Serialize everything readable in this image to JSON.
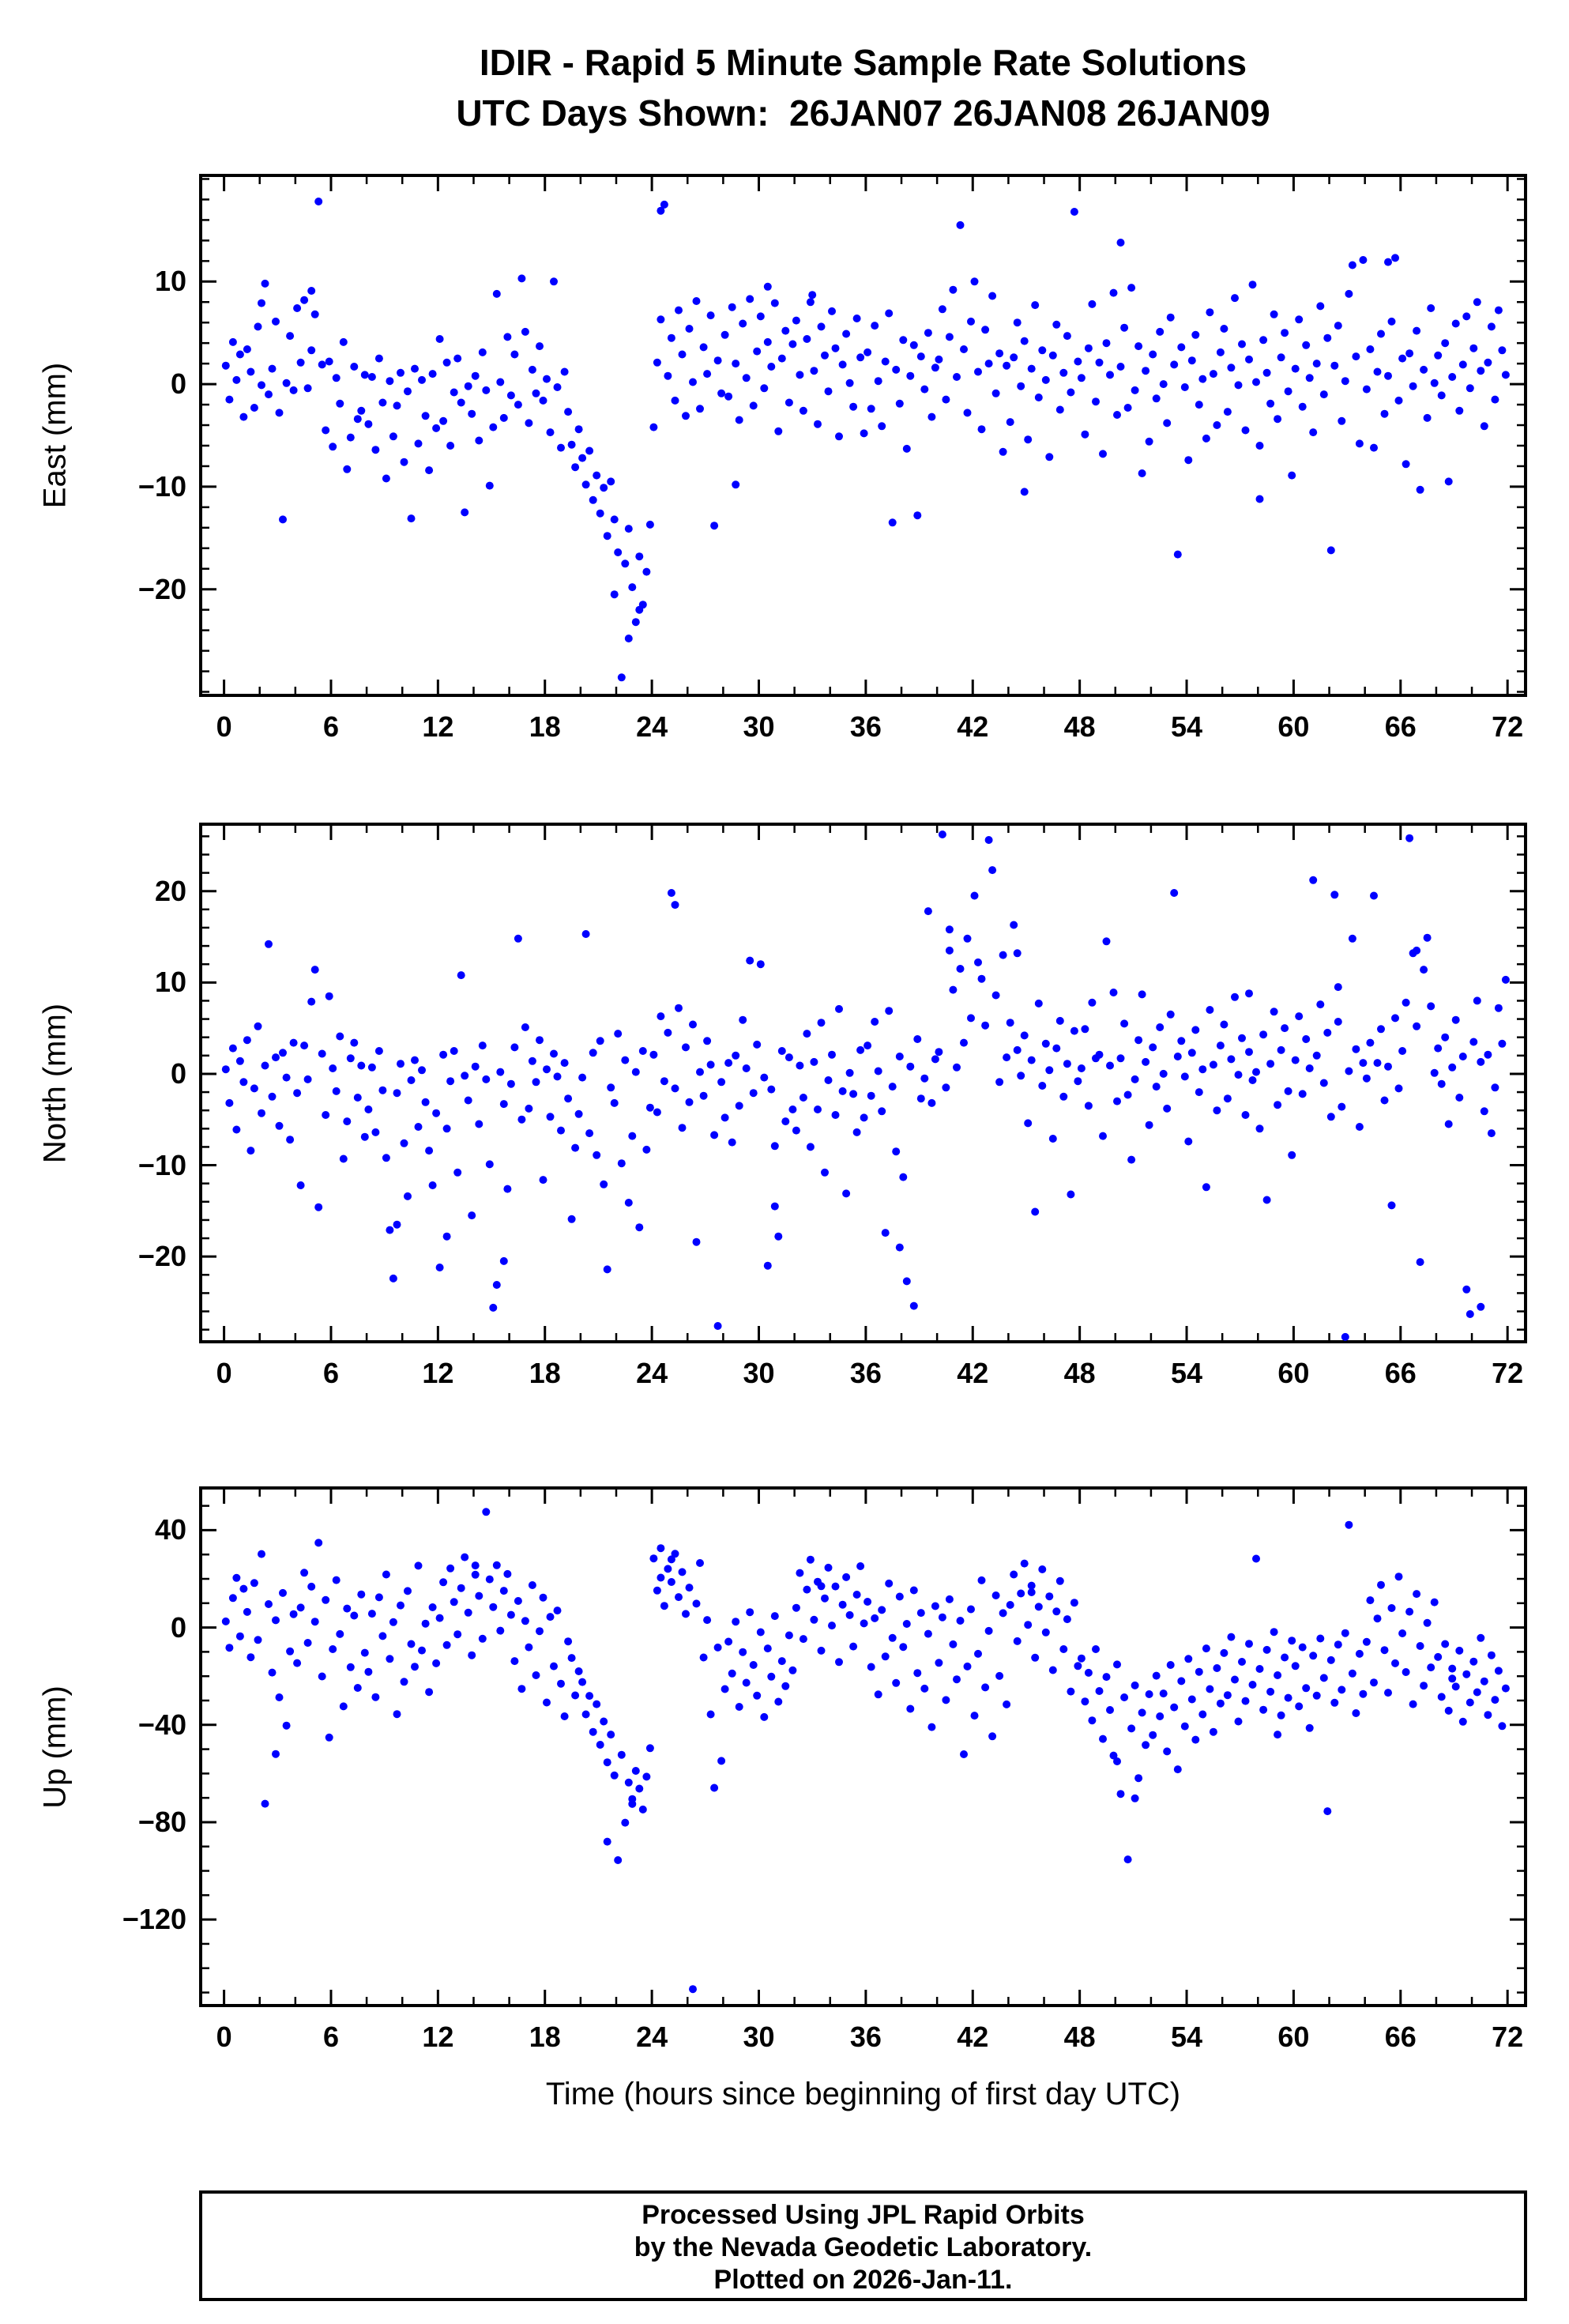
{
  "chart_meta": {
    "title_line1": "IDIR - Rapid 5 Minute Sample Rate Solutions",
    "title_line2": "UTC Days Shown:  26JAN07 26JAN08 26JAN09",
    "xlabel": "Time (hours since beginning of first day UTC)",
    "footer_lines": [
      "Processed Using JPL Rapid Orbits",
      "by the Nevada Geodetic Laboratory.",
      "Plotted on 2026-Jan-11."
    ],
    "marker_color": "#0000ff",
    "frame_color": "#000000",
    "background": "#ffffff"
  },
  "chart_data": [
    {
      "type": "scatter",
      "name": "east",
      "ylabel": "East (mm)",
      "xlim": [
        -1.4,
        73.1
      ],
      "ylim": [
        -30.5,
        20.5
      ],
      "x_ticks_major": [
        0,
        6,
        12,
        18,
        24,
        30,
        36,
        42,
        48,
        54,
        60,
        66,
        72
      ],
      "x_tick_minor_step": 2,
      "y_ticks_major": [
        -20,
        -10,
        0,
        10
      ],
      "y_tick_minor_step": 2,
      "x_start": 0.1,
      "x_step": 0.2,
      "y": [
        1.8,
        -1.5,
        4.1,
        0.4,
        2.9,
        -3.2,
        3.4,
        1.2,
        -2.3,
        5.6,
        -0.1,
        9.8,
        -1.0,
        1.5,
        6.1,
        -2.8,
        -13.2,
        0.1,
        4.7,
        -0.6,
        7.4,
        2.1,
        8.2,
        -0.4,
        3.3,
        6.8,
        17.8,
        1.9,
        -4.5,
        2.2,
        -6.1,
        0.6,
        -1.9,
        4.1,
        -8.3,
        -5.2,
        1.7,
        -3.4,
        -2.6,
        0.9,
        -3.9,
        0.7,
        -6.4,
        2.5,
        -1.8,
        -9.2,
        0.3,
        -5.1,
        -2.1,
        1.1,
        -7.6,
        -0.7,
        -13.1,
        1.5,
        -5.8,
        0.4,
        -3.1,
        -8.4,
        1.0,
        -4.3,
        4.4,
        -3.6,
        2.1,
        -6.0,
        -0.8,
        2.5,
        -1.8,
        -12.5,
        -0.2,
        -2.9,
        0.8,
        -5.5,
        3.1,
        -0.6,
        -9.9,
        -4.2,
        8.8,
        0.2,
        -3.3,
        4.6,
        -1.1,
        2.9,
        -2.0,
        10.3,
        5.1,
        -3.8,
        1.4,
        -0.9,
        3.7,
        -1.6,
        0.5,
        -4.7,
        10.0,
        -0.3,
        -6.2,
        1.2,
        -2.7,
        -5.9,
        -8.1,
        -4.4,
        -7.2,
        -9.8,
        -6.5,
        -11.3,
        -8.9,
        -12.6,
        -10.1,
        -14.8,
        -9.5,
        -13.2,
        -16.4,
        -28.6,
        -17.5,
        -14.1,
        -19.8,
        -23.2,
        -16.8,
        -21.5,
        -18.3,
        -13.7,
        -4.2,
        2.1,
        6.3,
        17.5,
        0.8,
        4.5,
        -1.6,
        7.2,
        2.9,
        -3.1,
        5.4,
        0.2,
        8.1,
        -2.4,
        3.6,
        1.0,
        6.7,
        -13.8,
        2.3,
        -0.9,
        4.8,
        -1.2,
        7.5,
        2.0,
        -3.5,
        5.9,
        0.6,
        8.3,
        -2.1,
        3.2,
        6.6,
        -0.4,
        4.1,
        1.7,
        7.9,
        -4.6,
        2.5,
        5.2,
        -1.8,
        3.9,
        6.2,
        0.9,
        -2.6,
        4.4,
        8.0,
        1.3,
        -3.9,
        5.6,
        2.8,
        -0.7,
        7.1,
        3.5,
        -5.1,
        1.9,
        4.9,
        0.1,
        -2.2,
        6.4,
        2.6,
        -4.8,
        3.1,
        -2.4,
        5.7,
        0.3,
        -4.1,
        2.2,
        6.9,
        -13.5,
        1.4,
        -1.9,
        4.3,
        -6.3,
        0.8,
        3.8,
        -12.8,
        2.7,
        -0.5,
        5.0,
        -3.2,
        1.6,
        2.4,
        7.3,
        -1.5,
        4.6,
        9.2,
        0.7,
        15.5,
        3.4,
        -2.8,
        6.1,
        10.0,
        1.2,
        -4.4,
        5.3,
        2.0,
        8.6,
        -0.9,
        3.0,
        -6.6,
        1.8,
        -3.7,
        2.6,
        6.0,
        -0.2,
        4.2,
        -5.4,
        1.5,
        7.7,
        -1.3,
        3.3,
        0.4,
        -7.1,
        2.8,
        5.8,
        -2.5,
        1.1,
        4.7,
        -0.8,
        16.8,
        2.2,
        0.6,
        -4.9,
        3.5,
        7.8,
        -1.7,
        2.1,
        -6.8,
        4.0,
        0.9,
        8.9,
        -3.0,
        1.7,
        5.5,
        -2.3,
        9.4,
        -0.6,
        3.7,
        -8.7,
        1.3,
        -5.6,
        2.9,
        -1.4,
        5.1,
        0.0,
        -3.8,
        6.5,
        1.9,
        -16.6,
        3.6,
        -0.3,
        -7.4,
        2.3,
        4.8,
        -2.0,
        0.5,
        -5.3,
        7.0,
        1.0,
        -4.0,
        3.1,
        5.4,
        -2.7,
        1.6,
        8.4,
        -0.1,
        3.9,
        -4.5,
        2.4,
        9.7,
        0.2,
        -6.0,
        4.3,
        1.1,
        -1.9,
        6.8,
        -3.4,
        2.6,
        5.0,
        -0.7,
        -8.9,
        1.5,
        6.3,
        -2.2,
        3.8,
        0.6,
        -4.7,
        2.0,
        7.6,
        -1.0,
        4.5,
        -16.2,
        1.8,
        5.7,
        -3.6,
        0.3,
        8.8,
        11.6,
        2.7,
        -5.8,
        12.1,
        -0.5,
        3.4,
        -6.2,
        1.2,
        4.9,
        -2.9,
        0.8,
        6.1,
        12.3,
        -1.6,
        2.5,
        -7.8,
        3.0,
        -0.2,
        5.2,
        -10.3,
        1.4,
        -3.3,
        7.4,
        0.1,
        2.8,
        -1.1,
        4.0,
        -9.5,
        0.7,
        5.9,
        -2.6,
        1.9,
        6.6,
        -0.4,
        3.5,
        8.0,
        1.3,
        -4.1,
        2.1,
        5.6,
        -1.5,
        7.2,
        3.3,
        0.9
      ],
      "extra_points": [
        [
          4.9,
          9.1
        ],
        [
          24.5,
          16.9
        ],
        [
          21.9,
          -20.5
        ],
        [
          22.7,
          -24.8
        ],
        [
          23.3,
          -22.0
        ],
        [
          30.5,
          9.5
        ],
        [
          33.0,
          8.7
        ],
        [
          50.3,
          13.8
        ],
        [
          65.3,
          11.9
        ],
        [
          2.1,
          7.9
        ],
        [
          28.7,
          -9.8
        ],
        [
          44.9,
          -10.5
        ],
        [
          58.1,
          -11.2
        ]
      ]
    },
    {
      "type": "scatter",
      "name": "north",
      "ylabel": "North (mm)",
      "xlim": [
        -1.4,
        73.1
      ],
      "ylim": [
        -29.5,
        27.5
      ],
      "x_ticks_major": [
        0,
        6,
        12,
        18,
        24,
        30,
        36,
        42,
        48,
        54,
        60,
        66,
        72
      ],
      "x_tick_minor_step": 2,
      "y_ticks_major": [
        -20,
        -10,
        0,
        10,
        20
      ],
      "y_tick_minor_step": 2,
      "x_start": 0.1,
      "x_step": 0.2,
      "y": [
        0.5,
        -3.2,
        2.8,
        -6.1,
        1.4,
        -0.9,
        3.7,
        -8.4,
        -1.6,
        5.2,
        -4.3,
        0.9,
        14.2,
        -2.5,
        1.8,
        -5.7,
        2.3,
        -0.4,
        -7.2,
        3.4,
        -2.1,
        -12.2,
        3.1,
        -0.6,
        7.9,
        11.4,
        -14.6,
        2.2,
        -4.5,
        8.5,
        0.6,
        -1.9,
        4.1,
        -9.3,
        -5.2,
        1.7,
        3.4,
        -2.6,
        0.9,
        -6.9,
        -3.9,
        0.7,
        -6.4,
        2.5,
        -1.8,
        -9.2,
        -17.1,
        -22.4,
        -2.1,
        1.1,
        -7.6,
        -13.4,
        -0.7,
        1.5,
        -5.8,
        0.4,
        -3.1,
        -8.4,
        -12.2,
        -4.3,
        -21.2,
        2.1,
        -6.0,
        -0.8,
        2.5,
        -10.8,
        10.8,
        -0.2,
        -2.9,
        -15.5,
        0.8,
        -5.5,
        3.1,
        -0.6,
        -9.9,
        -25.6,
        -23.1,
        0.2,
        -3.3,
        -12.6,
        -1.1,
        2.9,
        14.8,
        -5.0,
        5.1,
        -3.8,
        1.4,
        -0.9,
        3.7,
        -11.6,
        0.5,
        -4.7,
        2.2,
        -0.3,
        -6.2,
        1.2,
        -2.7,
        -15.9,
        -8.1,
        -4.4,
        -0.4,
        15.3,
        -6.5,
        2.3,
        -8.9,
        3.6,
        -12.1,
        -21.4,
        -1.5,
        -3.2,
        4.4,
        -9.8,
        1.5,
        -14.1,
        -6.8,
        0.2,
        -16.8,
        2.5,
        -8.3,
        -3.7,
        2.1,
        -4.2,
        6.3,
        -0.8,
        4.5,
        19.8,
        -1.6,
        7.2,
        -5.9,
        2.9,
        -3.1,
        5.4,
        -18.4,
        0.2,
        -2.4,
        3.6,
        1.0,
        -6.7,
        -27.6,
        -0.9,
        -4.8,
        1.2,
        -7.5,
        2.0,
        -3.5,
        5.9,
        0.6,
        12.4,
        -2.1,
        3.2,
        12.0,
        -0.4,
        -21.0,
        -1.7,
        -7.9,
        -17.8,
        2.5,
        -5.2,
        1.8,
        -3.9,
        -6.2,
        0.9,
        -2.6,
        4.4,
        -8.0,
        1.3,
        -3.9,
        5.6,
        -10.8,
        -0.7,
        2.1,
        -4.5,
        7.1,
        -1.9,
        -13.1,
        0.1,
        -2.2,
        -6.4,
        2.6,
        -4.8,
        3.1,
        -2.4,
        5.7,
        0.3,
        -4.1,
        -17.4,
        6.9,
        -1.4,
        -8.5,
        1.9,
        -11.3,
        -22.7,
        0.8,
        -25.4,
        3.8,
        -2.7,
        -0.5,
        17.8,
        -3.2,
        1.6,
        2.4,
        26.2,
        -1.5,
        13.5,
        9.2,
        0.7,
        11.5,
        3.4,
        14.8,
        6.1,
        19.5,
        12.2,
        10.4,
        5.3,
        25.6,
        22.3,
        8.6,
        -0.9,
        13.0,
        1.8,
        5.6,
        16.3,
        2.6,
        -0.2,
        4.2,
        -5.4,
        1.5,
        -15.1,
        7.7,
        -1.3,
        3.3,
        0.4,
        -7.1,
        2.8,
        5.8,
        -2.5,
        1.1,
        -13.2,
        4.7,
        -0.8,
        0.6,
        4.9,
        -3.5,
        7.8,
        1.7,
        2.1,
        -6.8,
        14.5,
        0.9,
        8.9,
        -3.0,
        1.7,
        5.5,
        -2.3,
        -9.4,
        -0.6,
        3.7,
        8.7,
        1.3,
        -5.6,
        2.9,
        -1.4,
        5.1,
        0.0,
        -3.8,
        6.5,
        19.8,
        1.9,
        3.6,
        -0.3,
        -7.4,
        2.3,
        4.8,
        -2.0,
        0.5,
        -12.4,
        7.0,
        1.0,
        -4.0,
        3.1,
        5.4,
        -2.7,
        1.6,
        8.4,
        -0.1,
        3.9,
        -4.5,
        2.4,
        -0.7,
        0.2,
        -6.0,
        4.3,
        -13.8,
        1.1,
        6.8,
        -3.4,
        2.6,
        5.0,
        -1.9,
        -8.9,
        1.5,
        6.3,
        -2.2,
        3.8,
        0.6,
        21.2,
        2.0,
        7.6,
        -1.0,
        4.5,
        -4.7,
        19.6,
        5.7,
        -3.6,
        -28.8,
        0.3,
        14.8,
        2.7,
        -5.8,
        1.2,
        -0.5,
        3.4,
        19.5,
        1.2,
        4.9,
        -2.9,
        0.8,
        -14.4,
        6.1,
        -1.6,
        2.5,
        7.8,
        25.8,
        13.2,
        5.2,
        -20.6,
        11.4,
        14.9,
        7.4,
        0.1,
        2.8,
        -1.1,
        4.0,
        -5.5,
        0.7,
        5.9,
        -2.6,
        1.9,
        -23.6,
        -26.3,
        3.5,
        8.0,
        1.3,
        -4.1,
        2.1,
        -6.5,
        -1.5,
        7.2,
        3.3,
        10.3
      ],
      "extra_points": [
        [
          25.3,
          18.5
        ],
        [
          40.7,
          15.8
        ],
        [
          44.5,
          13.2
        ],
        [
          66.9,
          13.5
        ],
        [
          9.7,
          -16.5
        ],
        [
          15.7,
          -20.5
        ],
        [
          30.9,
          -14.5
        ],
        [
          57.5,
          8.8
        ],
        [
          37.9,
          -19.0
        ],
        [
          62.5,
          9.5
        ],
        [
          70.5,
          -25.5
        ],
        [
          12.5,
          -17.8
        ]
      ]
    },
    {
      "type": "scatter",
      "name": "up",
      "ylabel": "Up (mm)",
      "xlim": [
        -1.4,
        73.1
      ],
      "ylim": [
        -156,
        58
      ],
      "x_ticks_major": [
        0,
        6,
        12,
        18,
        24,
        30,
        36,
        42,
        48,
        54,
        60,
        66,
        72
      ],
      "x_tick_minor_step": 2,
      "y_ticks_major": [
        -120,
        -80,
        -40,
        0,
        40
      ],
      "y_tick_minor_step": 10,
      "x_start": 0.1,
      "x_step": 0.2,
      "y": [
        2.5,
        -8.3,
        12.1,
        20.4,
        -3.6,
        15.9,
        6.4,
        -12.2,
        18.3,
        -5.1,
        30.2,
        -72.4,
        9.6,
        -18.5,
        3.0,
        -28.7,
        14.2,
        -40.3,
        -9.8,
        5.5,
        -14.6,
        8.2,
        22.5,
        -6.3,
        16.8,
        2.4,
        34.8,
        -20.1,
        11.3,
        -45.2,
        -8.9,
        19.5,
        -2.7,
        -32.4,
        7.8,
        -16.3,
        4.9,
        -24.8,
        13.6,
        -10.4,
        -18.2,
        5.7,
        -28.6,
        12.4,
        -3.5,
        21.8,
        -12.9,
        2.2,
        -35.6,
        9.1,
        -22.3,
        15.0,
        -6.8,
        -16.1,
        25.4,
        -9.4,
        1.6,
        -26.5,
        8.3,
        -14.7,
        3.9,
        18.6,
        -7.2,
        24.3,
        10.5,
        -2.8,
        16.2,
        28.9,
        6.1,
        -11.4,
        21.7,
        13.0,
        -4.6,
        47.5,
        19.8,
        8.4,
        25.6,
        -1.3,
        15.1,
        22.0,
        5.2,
        -13.8,
        10.9,
        -25.2,
        2.7,
        -8.1,
        17.4,
        -19.6,
        -1.5,
        12.3,
        -30.8,
        4.4,
        -15.9,
        7.0,
        -23.1,
        -36.5,
        -5.7,
        -12.5,
        -27.9,
        -18.0,
        -22.4,
        -35.7,
        -28.1,
        -42.9,
        -31.5,
        -48.2,
        -38.6,
        -55.4,
        -44.0,
        -60.8,
        -95.6,
        -52.3,
        -80.2,
        -63.7,
        -70.5,
        -58.9,
        -66.2,
        -74.8,
        -61.3,
        -49.6,
        28.4,
        15.2,
        32.6,
        8.9,
        24.1,
        18.7,
        30.3,
        12.5,
        22.8,
        5.6,
        16.4,
        -148.6,
        9.8,
        26.5,
        -12.3,
        3.1,
        -35.7,
        -65.9,
        -8.2,
        -54.8,
        -25.3,
        -5.8,
        -18.9,
        2.4,
        -32.6,
        -10.1,
        -22.7,
        6.3,
        -15.4,
        -28.0,
        -1.9,
        -36.8,
        -8.6,
        -20.2,
        4.7,
        -30.5,
        -13.8,
        -24.1,
        -3.2,
        -17.6,
        8.1,
        22.4,
        -4.7,
        15.6,
        27.9,
        3.2,
        18.8,
        -9.5,
        12.0,
        24.6,
        0.8,
        16.9,
        -14.2,
        9.4,
        20.7,
        5.1,
        -7.8,
        13.5,
        25.2,
        1.7,
        10.6,
        -16.2,
        3.8,
        -27.5,
        7.2,
        -11.9,
        18.1,
        -4.3,
        -22.8,
        12.7,
        -8.0,
        1.5,
        -33.4,
        15.3,
        -18.7,
        6.0,
        -25.1,
        -2.6,
        -40.9,
        8.8,
        -14.5,
        4.2,
        -29.8,
        11.6,
        -6.9,
        -21.3,
        2.8,
        -52.1,
        -16.0,
        7.5,
        -36.2,
        -10.8,
        19.4,
        -24.6,
        -1.4,
        -44.7,
        13.2,
        -19.9,
        5.9,
        -31.6,
        9.3,
        21.8,
        -5.6,
        14.0,
        26.3,
        1.1,
        17.2,
        -12.4,
        8.5,
        23.9,
        -2.0,
        12.8,
        -17.5,
        6.6,
        19.1,
        -8.9,
        3.4,
        -26.3,
        10.2,
        -15.8,
        -12.7,
        -30.4,
        -18.6,
        -38.2,
        -8.9,
        -26.1,
        -45.8,
        -20.3,
        -33.9,
        -52.6,
        -15.2,
        -68.4,
        -28.7,
        -95.3,
        -41.5,
        -23.8,
        -61.9,
        -35.0,
        -48.3,
        -27.4,
        -44.2,
        -19.8,
        -36.5,
        -27.1,
        -50.9,
        -15.4,
        -32.8,
        -58.3,
        -22.0,
        -40.6,
        -12.9,
        -29.5,
        -46.1,
        -18.2,
        -35.7,
        -8.6,
        -25.3,
        -42.9,
        -16.7,
        -31.2,
        -10.5,
        -27.8,
        -3.9,
        -21.4,
        -38.6,
        -14.1,
        -30.2,
        -6.7,
        -23.5,
        28.3,
        -17.0,
        -33.8,
        -9.2,
        -26.4,
        -1.8,
        -19.6,
        -36.1,
        -12.3,
        -28.9,
        -5.4,
        -15.8,
        -32.4,
        -8.1,
        -24.9,
        -41.3,
        -11.6,
        -28.0,
        -4.5,
        -20.7,
        -75.5,
        -13.4,
        -30.9,
        -7.0,
        -25.6,
        -2.3,
        42.2,
        -18.9,
        -35.2,
        -10.8,
        -27.3,
        -5.9,
        11.2,
        -22.6,
        3.7,
        17.5,
        -9.3,
        -26.8,
        8.0,
        -14.7,
        20.9,
        -2.4,
        -18.3,
        6.5,
        -31.5,
        13.8,
        -7.6,
        -23.9,
        1.9,
        -16.4,
        10.4,
        -12.1,
        -28.5,
        -6.8,
        -34.2,
        -16.9,
        -24.3,
        -9.5,
        -38.7,
        -19.2,
        -30.8,
        -14.0,
        -26.6,
        -4.3,
        -22.1,
        -35.9,
        -11.4,
        -29.7,
        -17.8,
        -40.5,
        -25.0
      ],
      "extra_points": [
        [
          24.5,
          20.5
        ],
        [
          25.1,
          28.0
        ],
        [
          21.5,
          -88.0
        ],
        [
          22.9,
          -72.5
        ],
        [
          50.1,
          -55.0
        ],
        [
          51.1,
          -70.2
        ],
        [
          2.9,
          -52.0
        ],
        [
          14.1,
          25.5
        ],
        [
          33.5,
          17.0
        ],
        [
          45.3,
          14.5
        ],
        [
          59.1,
          -44.0
        ],
        [
          68.9,
          -21.0
        ]
      ]
    }
  ]
}
